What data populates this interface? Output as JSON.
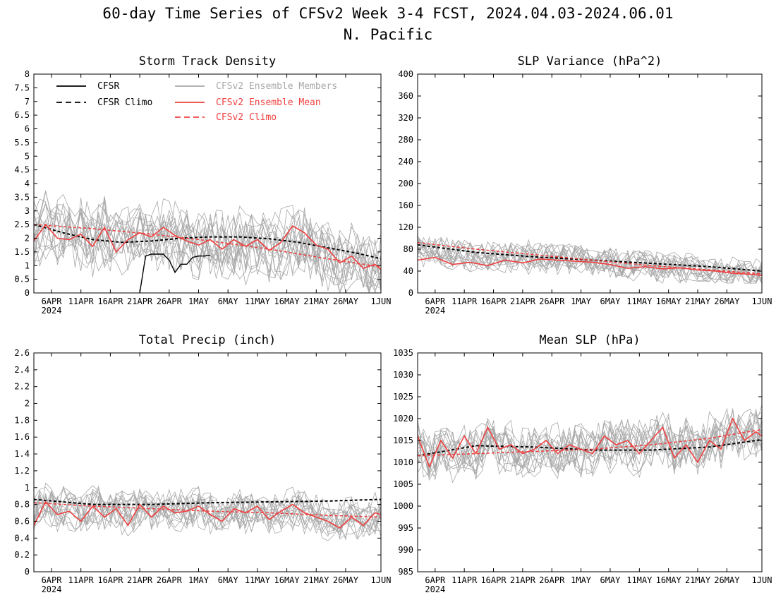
{
  "figure": {
    "title_line1": "60-day Time Series of CFSv2 Week 3-4 FCST, 2024.04.03-2024.06.01",
    "title_line2": "N. Pacific"
  },
  "colors": {
    "cfsr": "#000000",
    "cfsr_climo": "#000000",
    "members": "#a8a8a8",
    "ens_mean": "#f04040",
    "cfsv2_climo": "#f04040"
  },
  "legend": {
    "cfsr": "CFSR",
    "cfsr_climo": "CFSR Climo",
    "members": "CFSv2 Ensemble Members",
    "ens_mean": "CFSv2 Ensemble Mean",
    "cfsv2_climo": "CFSv2 Climo"
  },
  "x_axis": {
    "start_date": "2024-04-03",
    "end_date": "2024-06-01",
    "ticks": [
      {
        "date": "2024-04-06",
        "label": "6APR"
      },
      {
        "date": "2024-04-11",
        "label": "11APR"
      },
      {
        "date": "2024-04-16",
        "label": "16APR"
      },
      {
        "date": "2024-04-21",
        "label": "21APR"
      },
      {
        "date": "2024-04-26",
        "label": "26APR"
      },
      {
        "date": "2024-05-01",
        "label": "1MAY"
      },
      {
        "date": "2024-05-06",
        "label": "6MAY"
      },
      {
        "date": "2024-05-11",
        "label": "11MAY"
      },
      {
        "date": "2024-05-16",
        "label": "16MAY"
      },
      {
        "date": "2024-05-21",
        "label": "21MAY"
      },
      {
        "date": "2024-05-26",
        "label": "26MAY"
      },
      {
        "date": "2024-06-01",
        "label": "1JUN"
      }
    ],
    "year_label": "2024"
  },
  "chart_data": [
    {
      "type": "line",
      "title": "Storm Track Density",
      "ylim": [
        0,
        8
      ],
      "yticks": [
        "0",
        "0.5",
        "1",
        "1.5",
        "2",
        "2.5",
        "3",
        "3.5",
        "4",
        "4.5",
        "5",
        "5.5",
        "6",
        "6.5",
        "7",
        "7.5",
        "8"
      ],
      "member_count": 16,
      "members_approx": {
        "min": 0.0,
        "max": 4.1,
        "typical_band": [
          0.6,
          3.3
        ]
      },
      "series": [
        {
          "name": "CFSR",
          "x": [
            "2024-04-21",
            "2024-04-22",
            "2024-04-23",
            "2024-04-24",
            "2024-04-25",
            "2024-04-26",
            "2024-04-27",
            "2024-04-28",
            "2024-04-29",
            "2024-04-30",
            "2024-05-01",
            "2024-05-02",
            "2024-05-03"
          ],
          "values": [
            0,
            1.35,
            1.42,
            1.42,
            1.42,
            1.2,
            0.75,
            1.05,
            1.05,
            1.3,
            1.35,
            1.35,
            1.38
          ]
        },
        {
          "name": "CFSR Climo",
          "x": [
            "2024-04-03",
            "2024-04-08",
            "2024-04-13",
            "2024-04-18",
            "2024-04-23",
            "2024-04-28",
            "2024-05-03",
            "2024-05-08",
            "2024-05-13",
            "2024-05-18",
            "2024-05-23",
            "2024-05-28",
            "2024-06-01"
          ],
          "values": [
            2.5,
            2.2,
            1.95,
            1.85,
            1.9,
            2.0,
            2.05,
            2.05,
            1.98,
            1.85,
            1.65,
            1.45,
            1.25
          ]
        },
        {
          "name": "CFSv2 Ensemble Mean",
          "x": [
            "2024-04-03",
            "2024-04-05",
            "2024-04-07",
            "2024-04-09",
            "2024-04-11",
            "2024-04-13",
            "2024-04-15",
            "2024-04-17",
            "2024-04-19",
            "2024-04-21",
            "2024-04-23",
            "2024-04-25",
            "2024-04-27",
            "2024-04-29",
            "2024-05-01",
            "2024-05-03",
            "2024-05-05",
            "2024-05-07",
            "2024-05-09",
            "2024-05-11",
            "2024-05-13",
            "2024-05-15",
            "2024-05-17",
            "2024-05-19",
            "2024-05-21",
            "2024-05-23",
            "2024-05-25",
            "2024-05-27",
            "2024-05-29",
            "2024-05-31",
            "2024-06-01"
          ],
          "values": [
            1.9,
            2.5,
            2.0,
            1.95,
            2.15,
            1.7,
            2.4,
            1.5,
            1.95,
            2.2,
            2.05,
            2.4,
            2.1,
            1.9,
            1.75,
            1.95,
            1.6,
            1.95,
            1.7,
            1.95,
            1.55,
            1.85,
            2.45,
            2.2,
            1.75,
            1.6,
            1.1,
            1.35,
            0.9,
            1.05,
            0.85
          ]
        },
        {
          "name": "CFSv2 Climo",
          "x": [
            "2024-04-03",
            "2024-04-13",
            "2024-04-23",
            "2024-05-03",
            "2024-05-13",
            "2024-05-23",
            "2024-06-01"
          ],
          "values": [
            2.5,
            2.35,
            2.15,
            1.9,
            1.6,
            1.25,
            0.95
          ]
        }
      ]
    },
    {
      "type": "line",
      "title": "SLP Variance (hPa^2)",
      "ylim": [
        0,
        400
      ],
      "yticks": [
        "0",
        "40",
        "80",
        "120",
        "160",
        "200",
        "240",
        "280",
        "320",
        "360",
        "400"
      ],
      "member_count": 16,
      "members_approx": {
        "min": 18,
        "max": 110,
        "typical_band": [
          30,
          90
        ]
      },
      "series": [
        {
          "name": "CFSR Climo",
          "x": [
            "2024-04-03",
            "2024-04-13",
            "2024-04-23",
            "2024-05-03",
            "2024-05-13",
            "2024-05-23",
            "2024-06-01"
          ],
          "values": [
            88,
            74,
            66,
            60,
            54,
            48,
            40
          ]
        },
        {
          "name": "CFSv2 Ensemble Mean",
          "x": [
            "2024-04-03",
            "2024-04-06",
            "2024-04-09",
            "2024-04-12",
            "2024-04-15",
            "2024-04-18",
            "2024-04-21",
            "2024-04-24",
            "2024-04-27",
            "2024-04-30",
            "2024-05-03",
            "2024-05-06",
            "2024-05-09",
            "2024-05-12",
            "2024-05-15",
            "2024-05-18",
            "2024-05-21",
            "2024-05-24",
            "2024-05-27",
            "2024-05-30",
            "2024-06-01"
          ],
          "values": [
            60,
            65,
            52,
            56,
            50,
            60,
            55,
            62,
            60,
            58,
            56,
            52,
            45,
            48,
            44,
            46,
            42,
            40,
            36,
            34,
            32
          ]
        },
        {
          "name": "CFSv2 Climo",
          "x": [
            "2024-04-03",
            "2024-04-13",
            "2024-04-23",
            "2024-05-03",
            "2024-05-13",
            "2024-05-23",
            "2024-06-01"
          ],
          "values": [
            92,
            80,
            70,
            60,
            50,
            42,
            35
          ]
        }
      ]
    },
    {
      "type": "line",
      "title": "Total Precip (inch)",
      "ylim": [
        0,
        2.6
      ],
      "yticks": [
        "0",
        "0.2",
        "0.4",
        "0.6",
        "0.8",
        "1",
        "1.2",
        "1.4",
        "1.6",
        "1.8",
        "2",
        "2.2",
        "2.4",
        "2.6"
      ],
      "member_count": 16,
      "members_approx": {
        "min": 0.25,
        "max": 1.1,
        "typical_band": [
          0.45,
          0.95
        ]
      },
      "series": [
        {
          "name": "CFSR Climo",
          "x": [
            "2024-04-03",
            "2024-04-13",
            "2024-04-23",
            "2024-05-03",
            "2024-05-13",
            "2024-05-23",
            "2024-06-01"
          ],
          "values": [
            0.86,
            0.8,
            0.8,
            0.82,
            0.83,
            0.84,
            0.86
          ]
        },
        {
          "name": "CFSv2 Ensemble Mean",
          "x": [
            "2024-04-03",
            "2024-04-05",
            "2024-04-07",
            "2024-04-09",
            "2024-04-11",
            "2024-04-13",
            "2024-04-15",
            "2024-04-17",
            "2024-04-19",
            "2024-04-21",
            "2024-04-23",
            "2024-04-25",
            "2024-04-27",
            "2024-04-29",
            "2024-05-01",
            "2024-05-03",
            "2024-05-05",
            "2024-05-07",
            "2024-05-09",
            "2024-05-11",
            "2024-05-13",
            "2024-05-15",
            "2024-05-17",
            "2024-05-19",
            "2024-05-21",
            "2024-05-23",
            "2024-05-25",
            "2024-05-27",
            "2024-05-29",
            "2024-05-31",
            "2024-06-01"
          ],
          "values": [
            0.55,
            0.83,
            0.68,
            0.72,
            0.6,
            0.78,
            0.65,
            0.75,
            0.55,
            0.8,
            0.65,
            0.78,
            0.7,
            0.72,
            0.78,
            0.68,
            0.6,
            0.75,
            0.7,
            0.78,
            0.62,
            0.72,
            0.8,
            0.7,
            0.65,
            0.6,
            0.52,
            0.65,
            0.55,
            0.7,
            0.68
          ]
        },
        {
          "name": "CFSv2 Climo",
          "x": [
            "2024-04-03",
            "2024-04-13",
            "2024-04-23",
            "2024-05-03",
            "2024-05-13",
            "2024-05-23",
            "2024-06-01"
          ],
          "values": [
            0.82,
            0.78,
            0.75,
            0.72,
            0.7,
            0.67,
            0.65
          ]
        }
      ]
    },
    {
      "type": "line",
      "title": "Mean SLP (hPa)",
      "ylim": [
        985,
        1035
      ],
      "yticks": [
        "985",
        "990",
        "995",
        "1000",
        "1005",
        "1010",
        "1015",
        "1020",
        "1025",
        "1030",
        "1035"
      ],
      "member_count": 16,
      "members_approx": {
        "min": 1005,
        "max": 1025,
        "typical_band": [
          1008,
          1021
        ]
      },
      "series": [
        {
          "name": "CFSR Climo",
          "x": [
            "2024-04-03",
            "2024-04-13",
            "2024-04-23",
            "2024-05-03",
            "2024-05-13",
            "2024-05-23",
            "2024-06-01"
          ],
          "values": [
            1011.5,
            1013.8,
            1013.5,
            1012.8,
            1012.8,
            1013.5,
            1015.2
          ]
        },
        {
          "name": "CFSv2 Ensemble Mean",
          "x": [
            "2024-04-03",
            "2024-04-05",
            "2024-04-07",
            "2024-04-09",
            "2024-04-11",
            "2024-04-13",
            "2024-04-15",
            "2024-04-17",
            "2024-04-19",
            "2024-04-21",
            "2024-04-23",
            "2024-04-25",
            "2024-04-27",
            "2024-04-29",
            "2024-05-01",
            "2024-05-03",
            "2024-05-05",
            "2024-05-07",
            "2024-05-09",
            "2024-05-11",
            "2024-05-13",
            "2024-05-15",
            "2024-05-17",
            "2024-05-19",
            "2024-05-21",
            "2024-05-23",
            "2024-05-25",
            "2024-05-27",
            "2024-05-29",
            "2024-05-31",
            "2024-06-01"
          ],
          "values": [
            1016,
            1009,
            1015,
            1011,
            1016,
            1012,
            1018,
            1013,
            1014,
            1012,
            1013,
            1015,
            1012,
            1014,
            1013,
            1012,
            1016,
            1014,
            1015,
            1012,
            1015,
            1018,
            1011,
            1014,
            1010,
            1015,
            1013,
            1020,
            1015,
            1017,
            1016
          ]
        },
        {
          "name": "CFSv2 Climo",
          "x": [
            "2024-04-03",
            "2024-04-13",
            "2024-04-23",
            "2024-05-03",
            "2024-05-13",
            "2024-05-23",
            "2024-06-01"
          ],
          "values": [
            1011.5,
            1012,
            1012.5,
            1013,
            1014,
            1015.5,
            1017.5
          ]
        }
      ]
    }
  ]
}
